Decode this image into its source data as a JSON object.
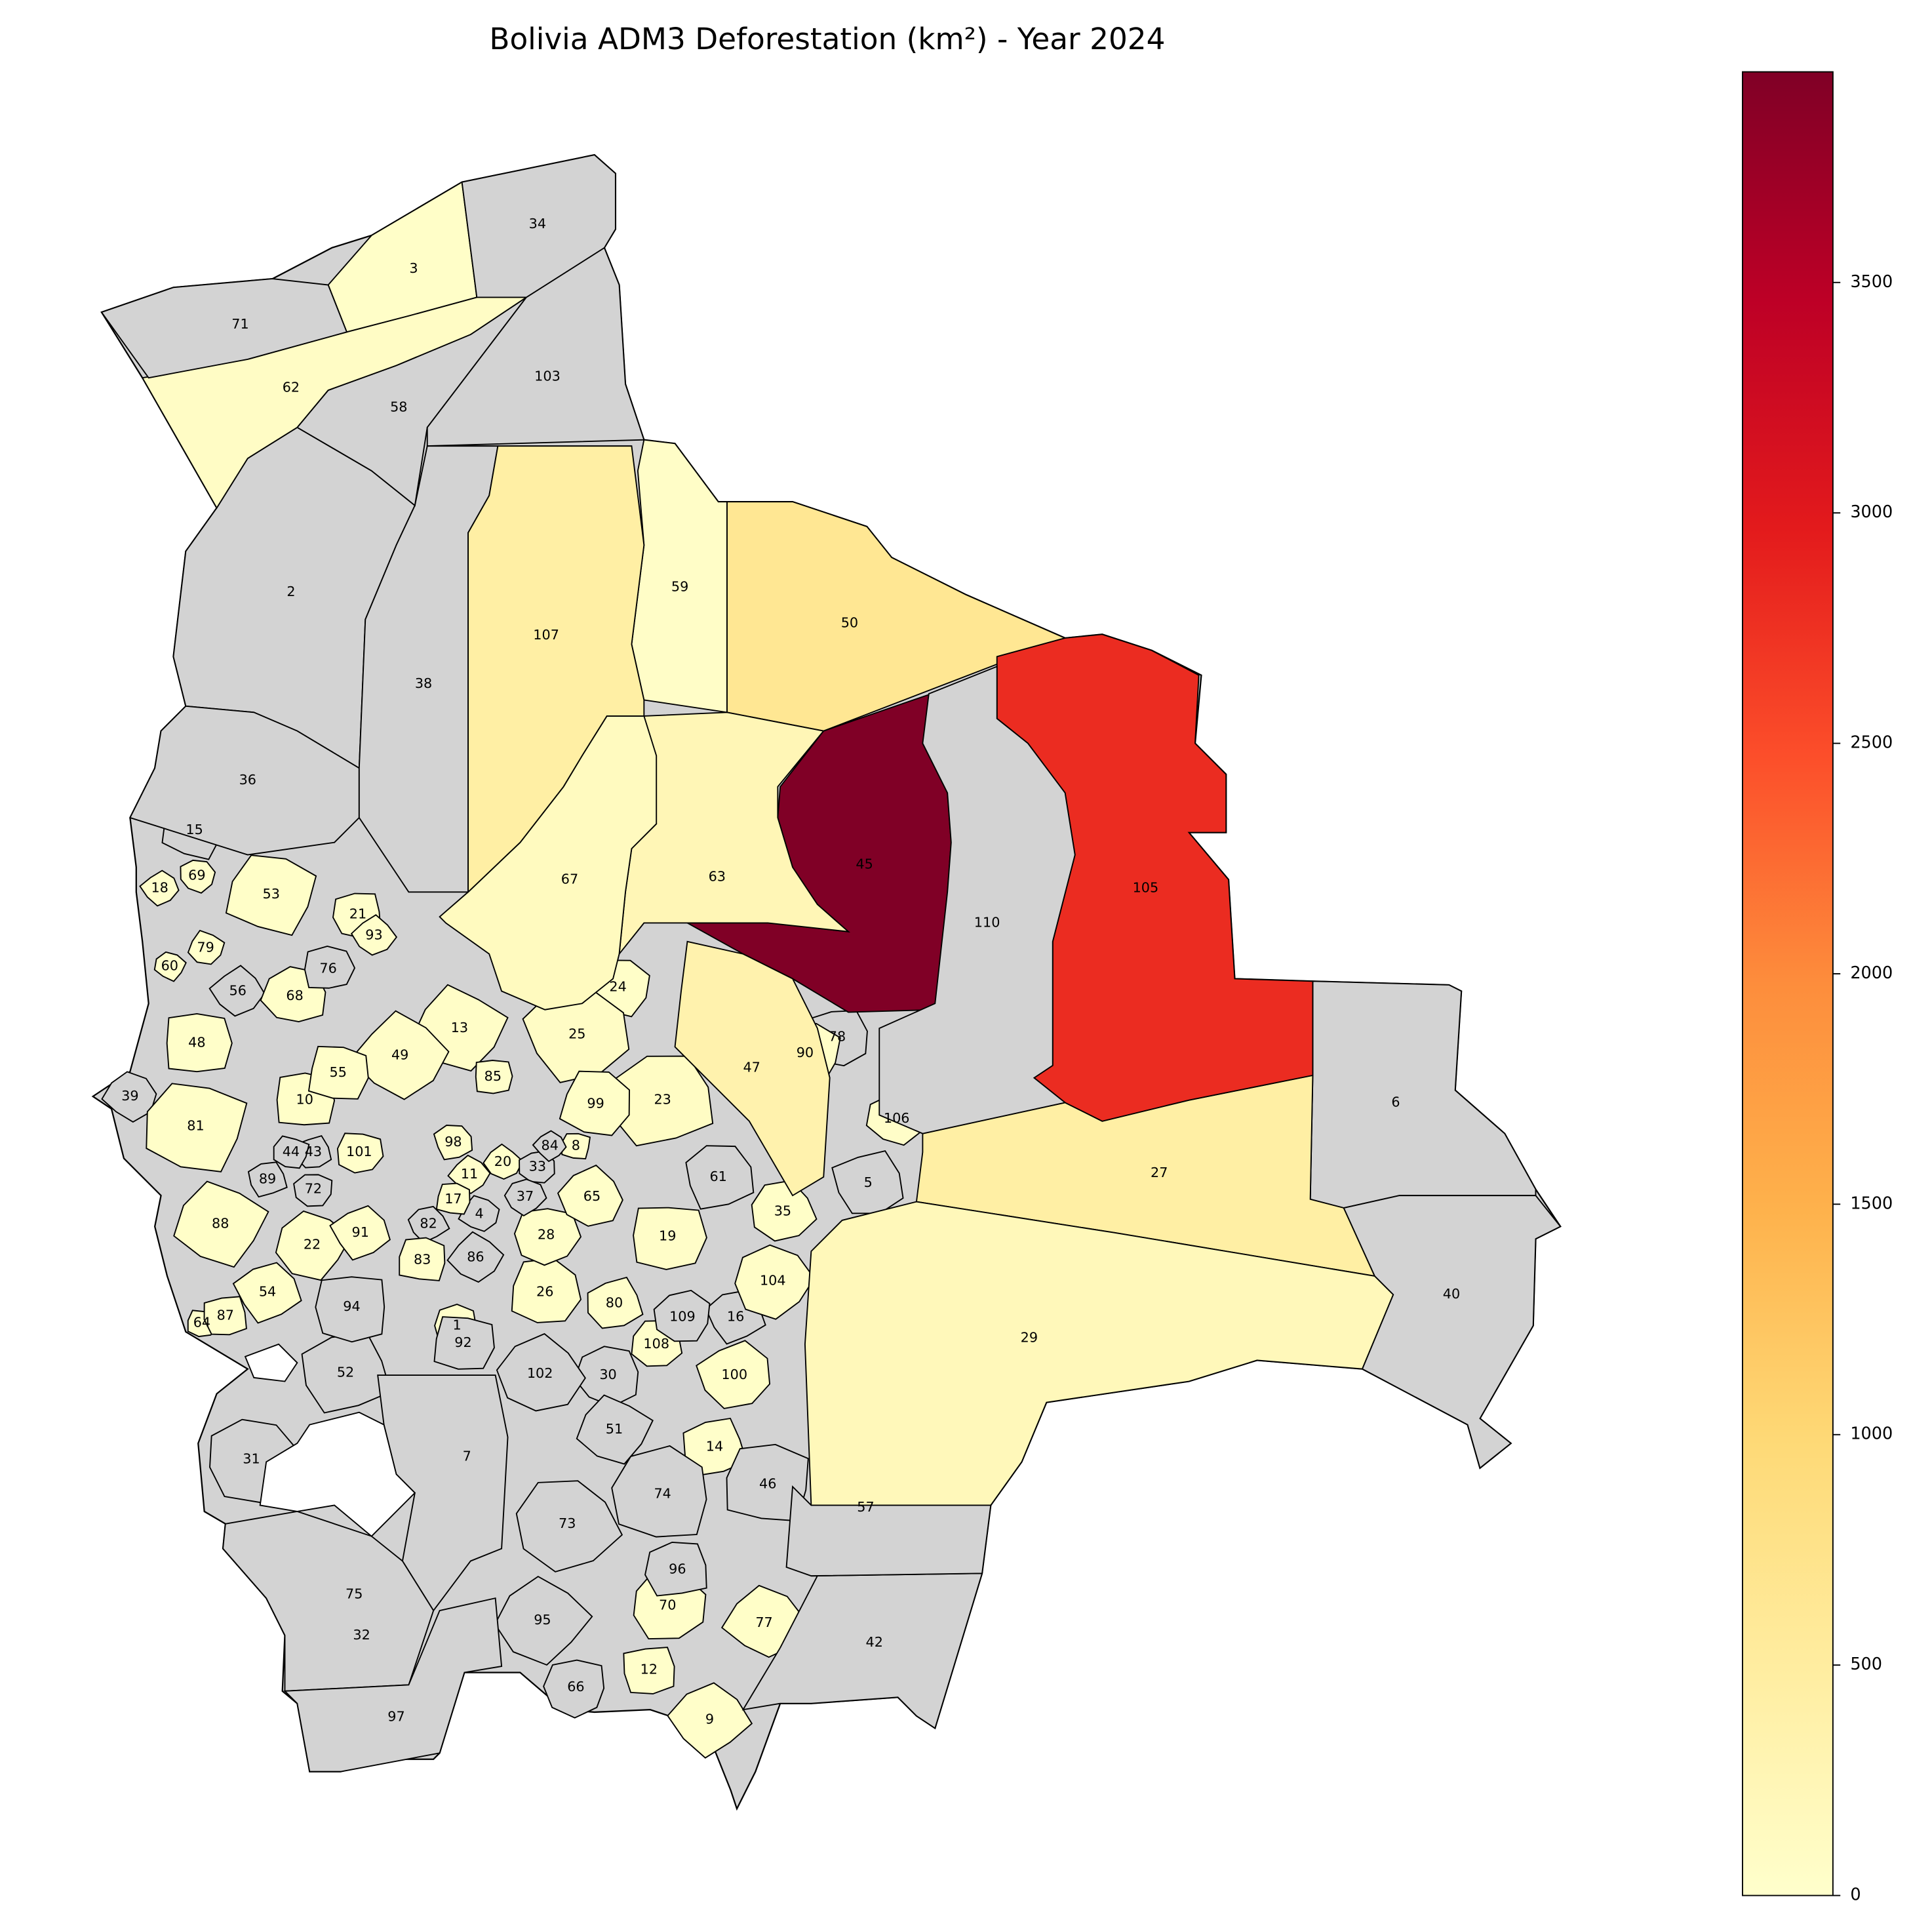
{
  "chart_data": {
    "type": "choropleth",
    "title": "Bolivia ADM3 Deforestation (km²) - Year 2024",
    "colormap": "YlOrRd",
    "missing_color": "#d3d3d3",
    "colorbar": {
      "lim": [
        0,
        3957
      ],
      "ticks": [
        0,
        500,
        1000,
        1500,
        2000,
        2500,
        3000,
        3500
      ]
    },
    "regions": [
      {
        "label": "1",
        "value": 20
      },
      {
        "label": "2",
        "value": null
      },
      {
        "label": "3",
        "value": 40
      },
      {
        "label": "4",
        "value": null
      },
      {
        "label": "5",
        "value": null
      },
      {
        "label": "6",
        "value": null
      },
      {
        "label": "7",
        "value": null
      },
      {
        "label": "8",
        "value": 15
      },
      {
        "label": "9",
        "value": 30
      },
      {
        "label": "10",
        "value": 40
      },
      {
        "label": "11",
        "value": 25
      },
      {
        "label": "12",
        "value": 20
      },
      {
        "label": "13",
        "value": 60
      },
      {
        "label": "14",
        "value": 20
      },
      {
        "label": "15",
        "value": null
      },
      {
        "label": "16",
        "value": null
      },
      {
        "label": "17",
        "value": 20
      },
      {
        "label": "18",
        "value": 15
      },
      {
        "label": "19",
        "value": 50
      },
      {
        "label": "20",
        "value": 20
      },
      {
        "label": "21",
        "value": 20
      },
      {
        "label": "22",
        "value": 30
      },
      {
        "label": "23",
        "value": 90
      },
      {
        "label": "24",
        "value": 40
      },
      {
        "label": "25",
        "value": 80
      },
      {
        "label": "26",
        "value": 40
      },
      {
        "label": "27",
        "value": 450
      },
      {
        "label": "28",
        "value": 30
      },
      {
        "label": "29",
        "value": 200
      },
      {
        "label": "30",
        "value": null
      },
      {
        "label": "31",
        "value": null
      },
      {
        "label": "32",
        "value": null
      },
      {
        "label": "33",
        "value": null
      },
      {
        "label": "34",
        "value": null
      },
      {
        "label": "35",
        "value": 40
      },
      {
        "label": "36",
        "value": null
      },
      {
        "label": "37",
        "value": null
      },
      {
        "label": "38",
        "value": null
      },
      {
        "label": "39",
        "value": null
      },
      {
        "label": "40",
        "value": null
      },
      {
        "label": "42",
        "value": null
      },
      {
        "label": "43",
        "value": null
      },
      {
        "label": "44",
        "value": null
      },
      {
        "label": "45",
        "value": 3957
      },
      {
        "label": "46",
        "value": null
      },
      {
        "label": "47",
        "value": 350
      },
      {
        "label": "48",
        "value": 30
      },
      {
        "label": "49",
        "value": 50
      },
      {
        "label": "50",
        "value": 650
      },
      {
        "label": "51",
        "value": null
      },
      {
        "label": "52",
        "value": null
      },
      {
        "label": "53",
        "value": 40
      },
      {
        "label": "54",
        "value": 30
      },
      {
        "label": "55",
        "value": 30
      },
      {
        "label": "56",
        "value": null
      },
      {
        "label": "57",
        "value": null
      },
      {
        "label": "58",
        "value": null
      },
      {
        "label": "59",
        "value": 60
      },
      {
        "label": "60",
        "value": 10
      },
      {
        "label": "61",
        "value": null
      },
      {
        "label": "62",
        "value": 80
      },
      {
        "label": "63",
        "value": 250
      },
      {
        "label": "64",
        "value": 10
      },
      {
        "label": "65",
        "value": 30
      },
      {
        "label": "66",
        "value": null
      },
      {
        "label": "67",
        "value": 150
      },
      {
        "label": "68",
        "value": 30
      },
      {
        "label": "69",
        "value": 20
      },
      {
        "label": "70",
        "value": 30
      },
      {
        "label": "71",
        "value": null
      },
      {
        "label": "72",
        "value": null
      },
      {
        "label": "73",
        "value": null
      },
      {
        "label": "74",
        "value": null
      },
      {
        "label": "75",
        "value": null
      },
      {
        "label": "76",
        "value": null
      },
      {
        "label": "77",
        "value": 40
      },
      {
        "label": "78",
        "value": null
      },
      {
        "label": "79",
        "value": 10
      },
      {
        "label": "80",
        "value": 20
      },
      {
        "label": "81",
        "value": 40
      },
      {
        "label": "82",
        "value": null
      },
      {
        "label": "83",
        "value": 20
      },
      {
        "label": "84",
        "value": null
      },
      {
        "label": "85",
        "value": 20
      },
      {
        "label": "86",
        "value": null
      },
      {
        "label": "87",
        "value": 15
      },
      {
        "label": "88",
        "value": 40
      },
      {
        "label": "89",
        "value": null
      },
      {
        "label": "90",
        "value": 40
      },
      {
        "label": "91",
        "value": 20
      },
      {
        "label": "92",
        "value": null
      },
      {
        "label": "93",
        "value": 20
      },
      {
        "label": "94",
        "value": null
      },
      {
        "label": "95",
        "value": null
      },
      {
        "label": "96",
        "value": null
      },
      {
        "label": "97",
        "value": null
      },
      {
        "label": "98",
        "value": 20
      },
      {
        "label": "99",
        "value": 40
      },
      {
        "label": "100",
        "value": 40
      },
      {
        "label": "101",
        "value": 20
      },
      {
        "label": "102",
        "value": null
      },
      {
        "label": "103",
        "value": null
      },
      {
        "label": "104",
        "value": 60
      },
      {
        "label": "105",
        "value": 2800
      },
      {
        "label": "106",
        "value": 50
      },
      {
        "label": "107",
        "value": 450
      },
      {
        "label": "108",
        "value": 20
      },
      {
        "label": "109",
        "value": null
      },
      {
        "label": "110",
        "value": null
      }
    ]
  }
}
